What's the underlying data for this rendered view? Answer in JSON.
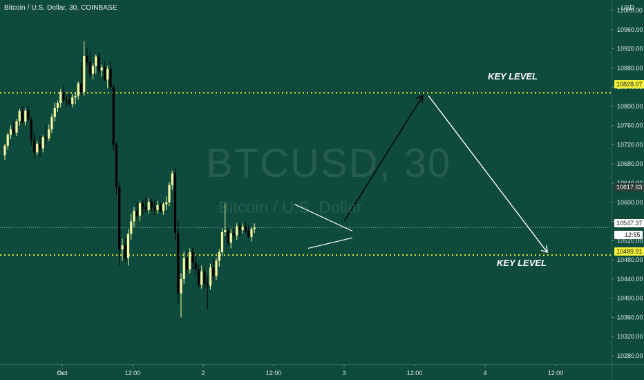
{
  "header": {
    "symbol_line": "Bitcoin / U.S. Dollar, 30, COINBASE",
    "currency": "USD"
  },
  "watermark": {
    "title": "BTCUSD, 30",
    "subtitle": "Bitcoin / U.S. Dollar"
  },
  "annotations": {
    "key_level_top": "KEY LEVEL",
    "key_level_bottom": "KEY LEVEL"
  },
  "price_labels": {
    "key_top": "10828.07",
    "pivot": "10617.63",
    "current": "10547.37",
    "countdown": "12:55",
    "key_bottom": "10489.91"
  },
  "colors": {
    "background": "#0f4b3c",
    "bull_candle": "#f4f7a3",
    "bear_candle": "#000000",
    "key_level_line": "#f4f13a",
    "arrow_up": "#000000",
    "arrow_down": "#ffffff",
    "triangle": "#ffffff"
  },
  "chart_data": {
    "type": "candlestick",
    "x_ticks": [
      "Oct",
      "12:00",
      "2",
      "12:00",
      "3",
      "12:00",
      "4",
      "12:00"
    ],
    "y_ticks": [
      "11000.00",
      "10960.00",
      "10920.00",
      "10880.00",
      "10840.00",
      "10800.00",
      "10760.00",
      "10720.00",
      "10680.00",
      "10640.00",
      "10600.00",
      "10560.00",
      "10520.00",
      "10480.00",
      "10440.00",
      "10400.00",
      "10360.00",
      "10320.00",
      "10280.00"
    ],
    "ylim": [
      10260,
      11010
    ],
    "key_levels": [
      10828.07,
      10489.91
    ],
    "last_price": 10547.37,
    "bars_per_day": 48,
    "candles": [
      [
        10698,
        10722,
        10688,
        10718
      ],
      [
        10718,
        10745,
        10710,
        10741
      ],
      [
        10741,
        10760,
        10732,
        10752
      ],
      [
        10752,
        10768,
        10740,
        10745
      ],
      [
        10745,
        10774,
        10738,
        10769
      ],
      [
        10769,
        10795,
        10760,
        10790
      ],
      [
        10790,
        10800,
        10764,
        10768
      ],
      [
        10768,
        10796,
        10760,
        10791
      ],
      [
        10791,
        10800,
        10768,
        10773
      ],
      [
        10773,
        10778,
        10718,
        10730
      ],
      [
        10730,
        10744,
        10694,
        10704
      ],
      [
        10704,
        10728,
        10698,
        10722
      ],
      [
        10722,
        10738,
        10694,
        10712
      ],
      [
        10712,
        10740,
        10704,
        10736
      ],
      [
        10736,
        10762,
        10720,
        10733
      ],
      [
        10733,
        10762,
        10728,
        10752
      ],
      [
        10752,
        10784,
        10744,
        10778
      ],
      [
        10778,
        10808,
        10768,
        10797
      ],
      [
        10797,
        10812,
        10788,
        10807
      ],
      [
        10807,
        10836,
        10798,
        10830
      ],
      [
        10830,
        10844,
        10808,
        10814
      ],
      [
        10814,
        10822,
        10800,
        10812
      ],
      [
        10812,
        10826,
        10800,
        10805
      ],
      [
        10805,
        10826,
        10798,
        10819
      ],
      [
        10819,
        10830,
        10804,
        10822
      ],
      [
        10822,
        10852,
        10814,
        10848
      ],
      [
        10848,
        10892,
        10820,
        10830
      ],
      [
        10830,
        10936,
        10822,
        10905
      ],
      [
        10905,
        10920,
        10882,
        10892
      ],
      [
        10892,
        10912,
        10860,
        10868
      ],
      [
        10868,
        10890,
        10856,
        10884
      ],
      [
        10884,
        10908,
        10868,
        10904
      ],
      [
        10904,
        10912,
        10868,
        10875
      ],
      [
        10875,
        10887,
        10862,
        10881
      ],
      [
        10881,
        10893,
        10852,
        10856
      ],
      [
        10856,
        10884,
        10838,
        10878
      ],
      [
        10878,
        10893,
        10832,
        10840
      ],
      [
        10840,
        10846,
        10708,
        10720
      ],
      [
        10720,
        10726,
        10616,
        10632
      ],
      [
        10632,
        10642,
        10468,
        10502
      ],
      [
        10502,
        10524,
        10478,
        10510
      ],
      [
        10510,
        10524,
        10474,
        10484
      ],
      [
        10484,
        10544,
        10468,
        10534
      ],
      [
        10534,
        10576,
        10522,
        10560
      ],
      [
        10560,
        10590,
        10548,
        10582
      ],
      [
        10582,
        10600,
        10566,
        10572
      ],
      [
        10572,
        10603,
        10560,
        10598
      ],
      [
        10598,
        10604,
        10574,
        10590
      ],
      [
        10590,
        10610,
        10578,
        10584
      ],
      [
        10584,
        10608,
        10576,
        10601
      ],
      [
        10601,
        10608,
        10582,
        10590
      ],
      [
        10590,
        10604,
        10574,
        10584
      ],
      [
        10584,
        10603,
        10576,
        10594
      ],
      [
        10594,
        10600,
        10578,
        10582
      ],
      [
        10582,
        10600,
        10574,
        10596
      ],
      [
        10596,
        10612,
        10584,
        10600
      ],
      [
        10600,
        10642,
        10592,
        10636
      ],
      [
        10636,
        10666,
        10626,
        10660
      ],
      [
        10660,
        10672,
        10520,
        10536
      ],
      [
        10536,
        10562,
        10388,
        10410
      ],
      [
        10410,
        10452,
        10360,
        10440
      ],
      [
        10440,
        10498,
        10430,
        10484
      ],
      [
        10484,
        10500,
        10452,
        10460
      ],
      [
        10460,
        10504,
        10452,
        10496
      ],
      [
        10496,
        10506,
        10460,
        10474
      ],
      [
        10474,
        10490,
        10448,
        10460
      ],
      [
        10460,
        10470,
        10420,
        10428
      ],
      [
        10428,
        10468,
        10420,
        10456
      ],
      [
        10456,
        10468,
        10420,
        10430
      ],
      [
        10430,
        10446,
        10378,
        10426
      ],
      [
        10426,
        10472,
        10418,
        10464
      ],
      [
        10464,
        10484,
        10436,
        10446
      ],
      [
        10446,
        10484,
        10438,
        10478
      ],
      [
        10478,
        10502,
        10466,
        10496
      ],
      [
        10496,
        10546,
        10488,
        10538
      ],
      [
        10538,
        10598,
        10530,
        10542
      ],
      [
        10542,
        10548,
        10508,
        10516
      ],
      [
        10516,
        10544,
        10504,
        10536
      ],
      [
        10536,
        10552,
        10524,
        10531
      ],
      [
        10531,
        10556,
        10522,
        10550
      ],
      [
        10550,
        10558,
        10530,
        10542
      ],
      [
        10542,
        10556,
        10534,
        10549
      ],
      [
        10549,
        10560,
        10536,
        10540
      ],
      [
        10540,
        10552,
        10524,
        10528
      ],
      [
        10528,
        10548,
        10518,
        10544
      ],
      [
        10544,
        10556,
        10536,
        10547
      ]
    ]
  }
}
